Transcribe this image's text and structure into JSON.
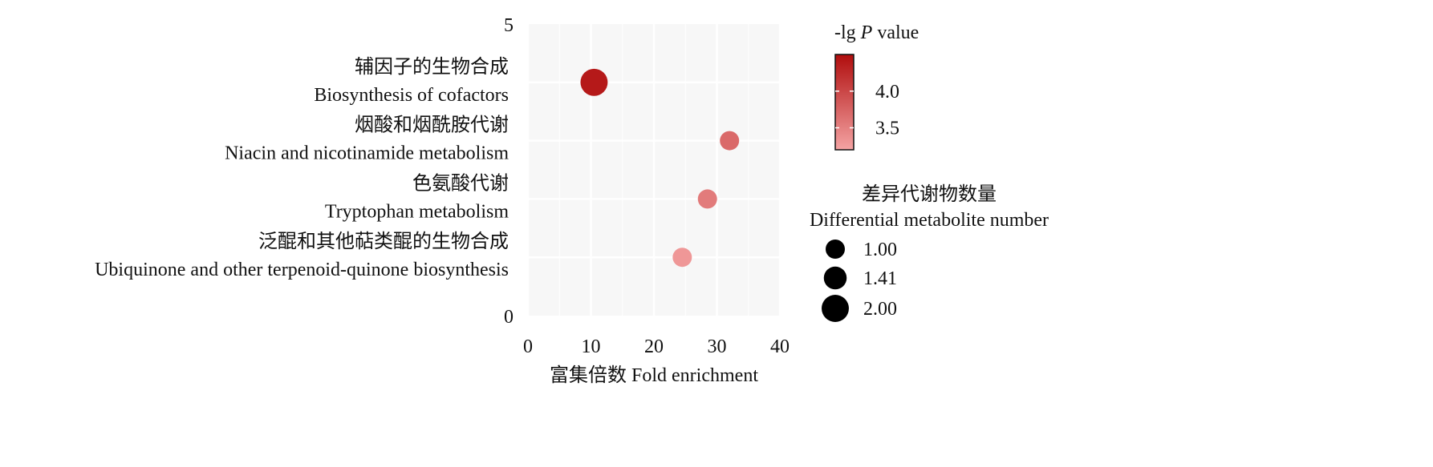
{
  "chart_data": {
    "type": "scatter",
    "xlabel": "富集倍数 Fold enrichment",
    "ylabel": "",
    "xlim": [
      0,
      40
    ],
    "ylim": [
      0,
      5
    ],
    "x_ticks": [
      "0",
      "10",
      "20",
      "30",
      "40"
    ],
    "y_ticks": [
      "0",
      "5"
    ],
    "grid": true,
    "categories": [
      {
        "label_cn": "辅因子的生物合成",
        "label_en": "Biosynthesis of cofactors",
        "y": 4,
        "fold_enrichment": 10.5,
        "neg_lg_p": 4.4,
        "metabolite_number": 2
      },
      {
        "label_cn": "烟酸和烟酰胺代谢",
        "label_en": "Niacin and nicotinamide metabolism",
        "y": 3,
        "fold_enrichment": 32,
        "neg_lg_p": 3.7,
        "metabolite_number": 1
      },
      {
        "label_cn": "色氨酸代谢",
        "label_en": "Tryptophan metabolism",
        "y": 2,
        "fold_enrichment": 28.5,
        "neg_lg_p": 3.55,
        "metabolite_number": 1
      },
      {
        "label_cn": "泛醌和其他萜类醌的生物合成",
        "label_en": "Ubiquinone and other terpenoid-quinone biosynthesis",
        "y": 1,
        "fold_enrichment": 24.5,
        "neg_lg_p": 3.3,
        "metabolite_number": 1
      }
    ],
    "color_legend": {
      "title_prefix": "-lg ",
      "title_italic": "P",
      "title_suffix": " value",
      "ticks": [
        "4.0",
        "3.5"
      ],
      "tick_values": [
        4.0,
        3.5
      ],
      "range": [
        3.2,
        4.5
      ],
      "low_color": "#f4a3a3",
      "high_color": "#b00d0d"
    },
    "size_legend": {
      "title_cn": "差异代谢物数量",
      "title_en": "Differential metabolite number",
      "entries": [
        {
          "label": "1.00",
          "value": 1.0
        },
        {
          "label": "1.41",
          "value": 1.41
        },
        {
          "label": "2.00",
          "value": 2.0
        }
      ]
    },
    "colors": {
      "panel_background": "#f7f7f7",
      "gridline": "#ffffff"
    }
  }
}
